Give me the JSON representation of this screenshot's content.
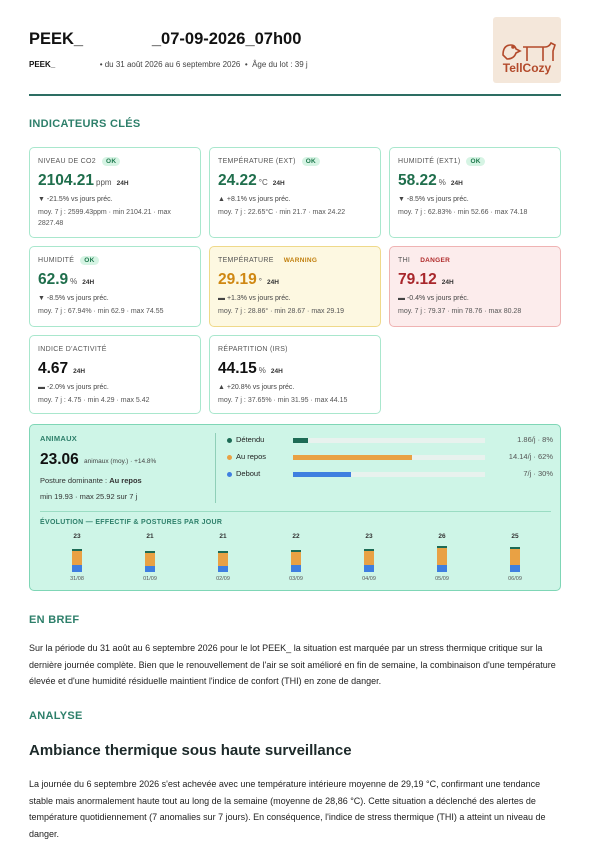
{
  "header": {
    "title_start": "PEEK_",
    "title_end": "_07-09-2026_07h00",
    "lot": "PEEK_",
    "period": "• du 31 août 2026 au 6 septembre 2026  •  Âge du lot : 39 j",
    "logo": "TellCozy"
  },
  "indicators": {
    "title": "INDICATEURS CLÉS",
    "cards": [
      {
        "label": "NIVEAU DE CO2",
        "status": "OK",
        "value": "2104.21",
        "unit": "ppm",
        "period": "24H",
        "trend": "▼  -21.5% vs jours préc.",
        "stats": "moy. 7 j : 2599.43ppm · min 2104.21 · max 2827.48"
      },
      {
        "label": "TEMPÉRATURE (EXT)",
        "status": "OK",
        "value": "24.22",
        "unit": "°C",
        "period": "24H",
        "trend": "▲  +8.1% vs jours préc.",
        "stats": "moy. 7 j : 22.65°C · min 21.7 · max 24.22"
      },
      {
        "label": "HUMIDITÉ (EXT1)",
        "status": "OK",
        "value": "58.22",
        "unit": "%",
        "period": "24H",
        "trend": "▼  -8.5% vs jours préc.",
        "stats": "moy. 7 j : 62.83% · min 52.66 · max 74.18"
      },
      {
        "label": "HUMIDITÉ",
        "status": "OK",
        "value": "62.9",
        "unit": "%",
        "period": "24H",
        "trend": "▼  -8.5% vs jours préc.",
        "stats": "moy. 7 j : 67.94% · min 62.9 · max 74.55"
      },
      {
        "label": "TEMPÉRATURE",
        "status": "WARNING",
        "value": "29.19",
        "unit": "°",
        "period": "24H",
        "trend": "▬  +1.3% vs jours préc.",
        "stats": "moy. 7 j : 28.86° · min 28.67 · max 29.19"
      },
      {
        "label": "THI",
        "status": "DANGER",
        "value": "79.12",
        "period": "24H",
        "trend": "▬  -0.4% vs jours préc.",
        "stats": "moy. 7 j : 79.37 · min 78.76 · max 80.28"
      },
      {
        "label": "INDICE D'ACTIVITÉ",
        "value": "4.67",
        "period": "24H",
        "trend": "▬  -2.0% vs jours préc.",
        "stats": "moy. 7 j : 4.75 · min 4.29 · max 5.42"
      },
      {
        "label": "RÉPARTITION (IRS)",
        "value": "44.15",
        "unit": "%",
        "period": "24H",
        "trend": "▲  +20.8% vs jours préc.",
        "stats": "moy. 7 j : 37.65% · min 31.95 · max 44.15"
      }
    ]
  },
  "animals": {
    "title": "ANIMAUX",
    "value": "23.06",
    "note": "animaux (moy.) · +14.8%",
    "posture_label": "Posture dominante :",
    "posture": "Au repos",
    "range": "min 19.93 · max 25.92 sur 7 j",
    "postures": [
      {
        "name": "Détendu",
        "color": "#1d6b55",
        "share": 8,
        "label": "1.86/j · 8%"
      },
      {
        "name": "Au repos",
        "color": "#e9a144",
        "share": 62,
        "label": "14.14/j · 62%"
      },
      {
        "name": "Debout",
        "color": "#3f7fe0",
        "share": 30,
        "label": "7/j · 30%"
      }
    ],
    "evolution": {
      "title": "ÉVOLUTION — EFFECTIF & POSTURES PAR JOUR",
      "days": [
        {
          "date": "31/08",
          "count": "23",
          "relaxed": 2,
          "resting": 14,
          "standing": 7
        },
        {
          "date": "01/09",
          "count": "21",
          "relaxed": 2,
          "resting": 13,
          "standing": 6
        },
        {
          "date": "02/09",
          "count": "21",
          "relaxed": 2,
          "resting": 13,
          "standing": 6
        },
        {
          "date": "03/09",
          "count": "22",
          "relaxed": 2,
          "resting": 13,
          "standing": 7
        },
        {
          "date": "04/09",
          "count": "23",
          "relaxed": 2,
          "resting": 14,
          "standing": 7
        },
        {
          "date": "05/09",
          "count": "26",
          "relaxed": 2,
          "resting": 17,
          "standing": 7
        },
        {
          "date": "06/09",
          "count": "25",
          "relaxed": 2,
          "resting": 16,
          "standing": 7
        }
      ]
    }
  },
  "summary": {
    "title": "EN BREF",
    "text_start": "Sur la période du 31 août au 6 septembre 2026 pour le lot PEEK_",
    "text_end": "la situation est marquée par un stress thermique critique sur la dernière journée complète. Bien que le renouvellement de l'air se soit amélioré en fin de semaine, la combinaison d'une température élevée et d'une humidité résiduelle maintient l'indice de confort (THI) en zone de danger."
  },
  "analysis": {
    "title": "ANALYSE",
    "heading": "Ambiance thermique sous haute surveillance",
    "text": "La journée du 6 septembre 2026 s'est achevée avec une température intérieure moyenne de 29,19 °C, confirmant une tendance stable mais anormalement haute tout au long de la semaine (moyenne de 28,86 °C). Cette situation a déclenché des alertes de température quotidiennement (7 anomalies sur 7 jours). En conséquence, l'indice de stress thermique (THI) a atteint un niveau de danger."
  }
}
